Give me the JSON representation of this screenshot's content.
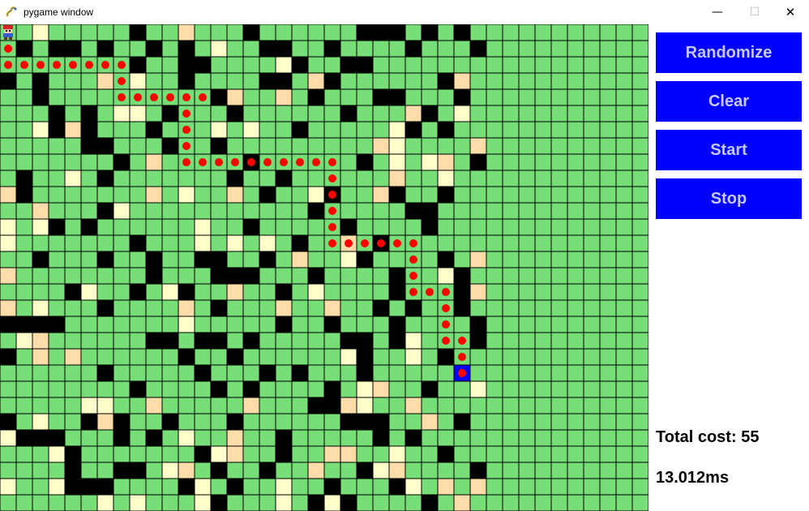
{
  "window": {
    "title": "pygame window",
    "controls": {
      "minimize": "—",
      "maximize": "☐",
      "close": "✕"
    }
  },
  "buttons": [
    {
      "label": "Randomize"
    },
    {
      "label": "Clear"
    },
    {
      "label": "Start"
    },
    {
      "label": "Stop"
    }
  ],
  "stats": {
    "total_cost_label": "Total cost:",
    "total_cost_value": "55",
    "elapsed": "13.012ms"
  },
  "colors": {
    "grass": "#77dd77",
    "wall": "#000000",
    "sand": "#ffddaa",
    "light": "#ffffcc",
    "path": "#ff0000",
    "goal": "#0000ff",
    "button_bg": "#0000ff",
    "button_text": "#c8c8ff"
  },
  "grid": {
    "cols": 40,
    "rows": 30,
    "start": [
      0,
      0
    ],
    "goal": [
      21,
      28
    ],
    "path": [
      [
        1,
        0
      ],
      [
        2,
        0
      ],
      [
        2,
        1
      ],
      [
        2,
        2
      ],
      [
        2,
        3
      ],
      [
        2,
        4
      ],
      [
        2,
        5
      ],
      [
        2,
        6
      ],
      [
        2,
        7
      ],
      [
        3,
        7
      ],
      [
        4,
        7
      ],
      [
        4,
        8
      ],
      [
        4,
        9
      ],
      [
        4,
        10
      ],
      [
        4,
        11
      ],
      [
        4,
        12
      ],
      [
        5,
        11
      ],
      [
        6,
        11
      ],
      [
        7,
        11
      ],
      [
        8,
        11
      ],
      [
        8,
        12
      ],
      [
        8,
        13
      ],
      [
        8,
        14
      ],
      [
        8,
        15
      ],
      [
        8,
        16
      ],
      [
        8,
        17
      ],
      [
        8,
        18
      ],
      [
        8,
        19
      ],
      [
        8,
        20
      ],
      [
        9,
        20
      ],
      [
        10,
        20
      ],
      [
        11,
        20
      ],
      [
        12,
        20
      ],
      [
        13,
        20
      ],
      [
        13,
        21
      ],
      [
        13,
        22
      ],
      [
        13,
        23
      ],
      [
        13,
        24
      ],
      [
        13,
        25
      ],
      [
        14,
        25
      ],
      [
        15,
        25
      ],
      [
        16,
        25
      ],
      [
        16,
        26
      ],
      [
        16,
        27
      ],
      [
        17,
        27
      ],
      [
        18,
        27
      ],
      [
        19,
        27
      ],
      [
        19,
        28
      ],
      [
        20,
        28
      ],
      [
        21,
        28
      ]
    ],
    "walls": [
      [
        3,
        0
      ],
      [
        18,
        0
      ],
      [
        20,
        0
      ],
      [
        24,
        0
      ],
      [
        38,
        0
      ],
      [
        1,
        1
      ],
      [
        9,
        1
      ],
      [
        10,
        1
      ],
      [
        18,
        1
      ],
      [
        25,
        1
      ],
      [
        37,
        1
      ],
      [
        3,
        2
      ],
      [
        4,
        2
      ],
      [
        14,
        2
      ],
      [
        18,
        2
      ],
      [
        25,
        2
      ],
      [
        38,
        2
      ],
      [
        1,
        3
      ],
      [
        5,
        3
      ],
      [
        6,
        3
      ],
      [
        12,
        3
      ],
      [
        18,
        3
      ],
      [
        25,
        3
      ],
      [
        35,
        3
      ],
      [
        1,
        4
      ],
      [
        16,
        4
      ],
      [
        26,
        4
      ],
      [
        27,
        4
      ],
      [
        28,
        4
      ],
      [
        35,
        4
      ],
      [
        36,
        4
      ],
      [
        5,
        5
      ],
      [
        6,
        5
      ],
      [
        7,
        5
      ],
      [
        12,
        5
      ],
      [
        24,
        5
      ],
      [
        28,
        5
      ],
      [
        30,
        5
      ],
      [
        34,
        5
      ],
      [
        37,
        5
      ],
      [
        38,
        5
      ],
      [
        39,
        5
      ],
      [
        1,
        6
      ],
      [
        7,
        6
      ],
      [
        9,
        6
      ],
      [
        11,
        6
      ],
      [
        14,
        6
      ],
      [
        17,
        6
      ],
      [
        21,
        6
      ],
      [
        28,
        6
      ],
      [
        34,
        6
      ],
      [
        8,
        7
      ],
      [
        24,
        7
      ],
      [
        25,
        7
      ],
      [
        27,
        7
      ],
      [
        31,
        7
      ],
      [
        35,
        7
      ],
      [
        0,
        8
      ],
      [
        2,
        8
      ],
      [
        13,
        8
      ],
      [
        16,
        8
      ],
      [
        22,
        8
      ],
      [
        27,
        8
      ],
      [
        32,
        8
      ],
      [
        33,
        8
      ],
      [
        36,
        8
      ],
      [
        1,
        9
      ],
      [
        6,
        9
      ],
      [
        14,
        9
      ],
      [
        15,
        9
      ],
      [
        19,
        9
      ],
      [
        25,
        9
      ],
      [
        31,
        9
      ],
      [
        34,
        9
      ],
      [
        5,
        10
      ],
      [
        7,
        10
      ],
      [
        19,
        10
      ],
      [
        24,
        10
      ],
      [
        30,
        10
      ],
      [
        34,
        10
      ],
      [
        35,
        10
      ],
      [
        36,
        10
      ],
      [
        39,
        10
      ],
      [
        1,
        11
      ],
      [
        2,
        11
      ],
      [
        3,
        11
      ],
      [
        16,
        11
      ],
      [
        20,
        11
      ],
      [
        28,
        11
      ],
      [
        33,
        11
      ],
      [
        37,
        11
      ],
      [
        39,
        11
      ],
      [
        2,
        12
      ],
      [
        14,
        12
      ],
      [
        19,
        12
      ],
      [
        21,
        12
      ],
      [
        26,
        12
      ],
      [
        31,
        12
      ],
      [
        32,
        12
      ],
      [
        34,
        12
      ],
      [
        4,
        13
      ],
      [
        7,
        13
      ],
      [
        14,
        13
      ],
      [
        15,
        13
      ],
      [
        17,
        13
      ],
      [
        19,
        13
      ],
      [
        22,
        13
      ],
      [
        27,
        13
      ],
      [
        29,
        13
      ],
      [
        33,
        13
      ],
      [
        36,
        13
      ],
      [
        5,
        14
      ],
      [
        9,
        14
      ],
      [
        15,
        14
      ],
      [
        20,
        14
      ],
      [
        24,
        14
      ],
      [
        28,
        14
      ],
      [
        35,
        14
      ],
      [
        0,
        15
      ],
      [
        8,
        15
      ],
      [
        12,
        15
      ],
      [
        15,
        15
      ],
      [
        19,
        15
      ],
      [
        22,
        15
      ],
      [
        30,
        15
      ],
      [
        34,
        15
      ],
      [
        38,
        15
      ],
      [
        1,
        16
      ],
      [
        3,
        16
      ],
      [
        10,
        16
      ],
      [
        14,
        16
      ],
      [
        21,
        16
      ],
      [
        27,
        16
      ],
      [
        36,
        16
      ],
      [
        38,
        16
      ],
      [
        39,
        16
      ],
      [
        1,
        17
      ],
      [
        3,
        17
      ],
      [
        9,
        17
      ],
      [
        16,
        17
      ],
      [
        18,
        17
      ],
      [
        25,
        17
      ],
      [
        26,
        17
      ],
      [
        32,
        17
      ],
      [
        33,
        17
      ],
      [
        2,
        18
      ],
      [
        6,
        18
      ],
      [
        13,
        18
      ],
      [
        21,
        18
      ],
      [
        30,
        18
      ],
      [
        35,
        18
      ],
      [
        4,
        19
      ],
      [
        11,
        19
      ],
      [
        15,
        19
      ],
      [
        23,
        19
      ],
      [
        29,
        19
      ],
      [
        37,
        19
      ],
      [
        1,
        20
      ],
      [
        3,
        20
      ],
      [
        10,
        20
      ],
      [
        18,
        20
      ],
      [
        22,
        20
      ],
      [
        23,
        20
      ],
      [
        28,
        20
      ],
      [
        32,
        20
      ],
      [
        39,
        20
      ],
      [
        2,
        21
      ],
      [
        5,
        21
      ],
      [
        12,
        21
      ],
      [
        19,
        21
      ],
      [
        24,
        21
      ],
      [
        29,
        21
      ],
      [
        35,
        21
      ],
      [
        0,
        22
      ],
      [
        2,
        22
      ],
      [
        8,
        22
      ],
      [
        14,
        22
      ],
      [
        19,
        22
      ],
      [
        20,
        22
      ],
      [
        21,
        22
      ],
      [
        24,
        22
      ],
      [
        27,
        22
      ],
      [
        30,
        22
      ],
      [
        38,
        22
      ],
      [
        0,
        23
      ],
      [
        4,
        23
      ],
      [
        13,
        23
      ],
      [
        17,
        23
      ],
      [
        24,
        23
      ],
      [
        25,
        23
      ],
      [
        32,
        23
      ],
      [
        36,
        23
      ],
      [
        0,
        24
      ],
      [
        4,
        24
      ],
      [
        10,
        24
      ],
      [
        15,
        24
      ],
      [
        16,
        24
      ],
      [
        18,
        24
      ],
      [
        19,
        24
      ],
      [
        28,
        24
      ],
      [
        34,
        24
      ],
      [
        1,
        25
      ],
      [
        6,
        25
      ],
      [
        11,
        25
      ],
      [
        17,
        25
      ],
      [
        25,
        25
      ],
      [
        31,
        25
      ],
      [
        32,
        25
      ],
      [
        0,
        26
      ],
      [
        5,
        26
      ],
      [
        11,
        26
      ],
      [
        12,
        26
      ],
      [
        22,
        26
      ],
      [
        29,
        26
      ],
      [
        33,
        26
      ],
      [
        3,
        27
      ],
      [
        6,
        27
      ],
      [
        10,
        27
      ],
      [
        14,
        27
      ],
      [
        20,
        27
      ],
      [
        26,
        27
      ],
      [
        30,
        27
      ],
      [
        31,
        27
      ],
      [
        0,
        28
      ],
      [
        4,
        28
      ],
      [
        15,
        28
      ],
      [
        16,
        28
      ],
      [
        17,
        28
      ],
      [
        24,
        28
      ],
      [
        36,
        28
      ],
      [
        38,
        28
      ],
      [
        1,
        29
      ],
      [
        8,
        29
      ],
      [
        18,
        29
      ],
      [
        19,
        29
      ],
      [
        27,
        29
      ],
      [
        31,
        29
      ],
      [
        36,
        29
      ]
    ],
    "sand": [
      [
        10,
        0
      ],
      [
        15,
        0
      ],
      [
        17,
        0
      ],
      [
        31,
        0
      ],
      [
        1,
        1
      ],
      [
        11,
        2
      ],
      [
        19,
        2
      ],
      [
        20,
        2
      ],
      [
        31,
        2
      ],
      [
        6,
        4
      ],
      [
        20,
        4
      ],
      [
        3,
        6
      ],
      [
        17,
        6
      ],
      [
        24,
        6
      ],
      [
        34,
        6
      ],
      [
        39,
        7
      ],
      [
        8,
        9
      ],
      [
        10,
        9
      ],
      [
        23,
        9
      ],
      [
        0,
        11
      ],
      [
        17,
        11
      ],
      [
        27,
        11
      ],
      [
        37,
        11
      ],
      [
        4,
        14
      ],
      [
        10,
        14
      ],
      [
        16,
        14
      ],
      [
        25,
        14
      ],
      [
        26,
        14
      ],
      [
        19,
        15
      ],
      [
        23,
        15
      ],
      [
        32,
        15
      ],
      [
        39,
        15
      ],
      [
        4,
        17
      ],
      [
        17,
        17
      ],
      [
        31,
        17
      ],
      [
        33,
        17
      ],
      [
        14,
        18
      ],
      [
        3,
        19
      ],
      [
        23,
        19
      ],
      [
        27,
        19
      ],
      [
        17,
        20
      ],
      [
        26,
        20
      ],
      [
        13,
        21
      ],
      [
        23,
        21
      ],
      [
        26,
        21
      ],
      [
        38,
        21
      ],
      [
        2,
        22
      ],
      [
        7,
        23
      ],
      [
        10,
        23
      ],
      [
        22,
        23
      ],
      [
        37,
        23
      ],
      [
        38,
        23
      ],
      [
        8,
        24
      ],
      [
        9,
        24
      ],
      [
        27,
        24
      ],
      [
        34,
        24
      ],
      [
        5,
        25
      ],
      [
        23,
        25
      ],
      [
        35,
        25
      ],
      [
        24,
        26
      ],
      [
        30,
        26
      ],
      [
        8,
        27
      ],
      [
        28,
        27
      ],
      [
        32,
        27
      ],
      [
        34,
        27
      ],
      [
        0,
        28
      ],
      [
        3,
        28
      ],
      [
        29,
        28
      ],
      [
        7,
        29
      ],
      [
        14,
        29
      ],
      [
        16,
        29
      ],
      [
        28,
        29
      ],
      [
        34,
        29
      ]
    ],
    "light": [
      [
        12,
        0
      ],
      [
        13,
        0
      ],
      [
        25,
        0
      ],
      [
        28,
        0
      ],
      [
        37,
        0
      ],
      [
        19,
        1
      ],
      [
        33,
        1
      ],
      [
        0,
        2
      ],
      [
        6,
        2
      ],
      [
        12,
        2
      ],
      [
        17,
        2
      ],
      [
        24,
        2
      ],
      [
        26,
        3
      ],
      [
        28,
        3
      ],
      [
        34,
        3
      ],
      [
        9,
        4
      ],
      [
        26,
        4
      ],
      [
        31,
        4
      ],
      [
        16,
        5
      ],
      [
        23,
        5
      ],
      [
        14,
        6
      ],
      [
        23,
        6
      ],
      [
        29,
        6
      ],
      [
        32,
        6
      ],
      [
        36,
        6
      ],
      [
        39,
        6
      ],
      [
        5,
        7
      ],
      [
        11,
        7
      ],
      [
        3,
        8
      ],
      [
        5,
        8
      ],
      [
        29,
        8
      ],
      [
        30,
        8
      ],
      [
        33,
        9
      ],
      [
        38,
        9
      ],
      [
        16,
        10
      ],
      [
        27,
        10
      ],
      [
        10,
        11
      ],
      [
        18,
        11
      ],
      [
        25,
        11
      ],
      [
        36,
        11
      ],
      [
        12,
        12
      ],
      [
        13,
        12
      ],
      [
        28,
        12
      ],
      [
        29,
        12
      ],
      [
        1,
        13
      ],
      [
        6,
        13
      ],
      [
        26,
        13
      ],
      [
        30,
        13
      ],
      [
        31,
        13
      ],
      [
        13,
        14
      ],
      [
        35,
        14
      ],
      [
        38,
        14
      ],
      [
        6,
        15
      ],
      [
        34,
        15
      ],
      [
        13,
        16
      ],
      [
        31,
        16
      ],
      [
        32,
        16
      ],
      [
        37,
        16
      ],
      [
        2,
        17
      ],
      [
        28,
        17
      ],
      [
        29,
        17
      ],
      [
        31,
        17
      ],
      [
        32,
        17
      ],
      [
        10,
        19
      ],
      [
        11,
        19
      ],
      [
        16,
        19
      ],
      [
        36,
        19
      ],
      [
        29,
        20
      ],
      [
        14,
        21
      ],
      [
        20,
        21
      ],
      [
        37,
        21
      ],
      [
        0,
        22
      ],
      [
        22,
        22
      ],
      [
        23,
        22
      ],
      [
        35,
        22
      ],
      [
        27,
        23
      ],
      [
        37,
        23
      ],
      [
        6,
        24
      ],
      [
        7,
        24
      ],
      [
        8,
        24
      ],
      [
        26,
        24
      ],
      [
        35,
        24
      ],
      [
        19,
        25
      ],
      [
        20,
        25
      ],
      [
        28,
        25
      ],
      [
        34,
        25
      ],
      [
        8,
        26
      ],
      [
        31,
        26
      ],
      [
        36,
        26
      ],
      [
        9,
        27
      ],
      [
        15,
        27
      ],
      [
        5,
        28
      ],
      [
        38,
        28
      ],
      [
        39,
        28
      ],
      [
        22,
        29
      ],
      [
        33,
        29
      ]
    ]
  }
}
